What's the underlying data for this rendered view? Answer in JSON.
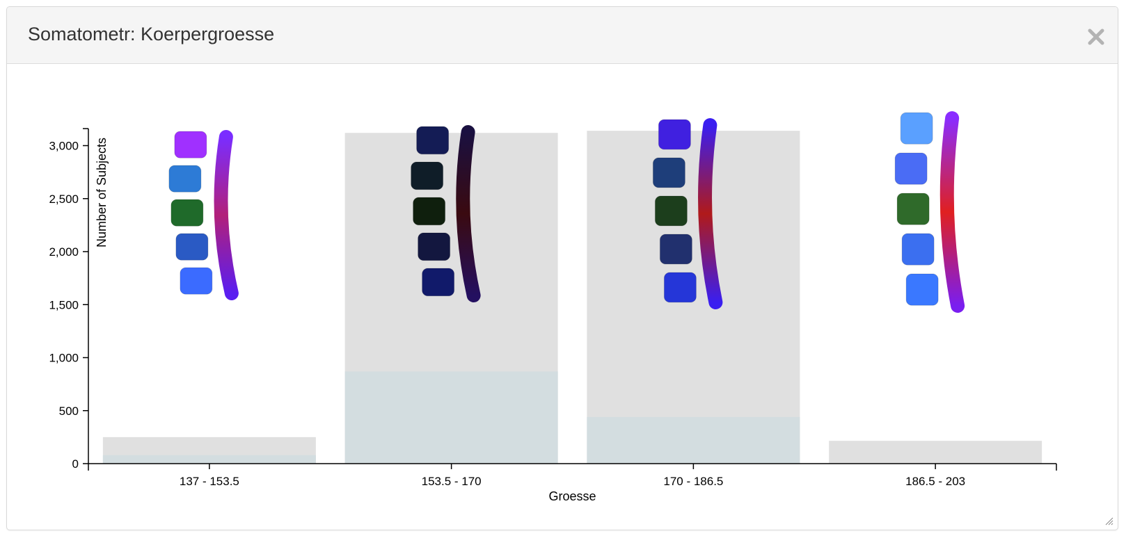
{
  "window": {
    "title": "Somatometr: Koerpergroesse",
    "close_icon": "close-icon",
    "resize_icon": "resize-grip-icon"
  },
  "colors": {
    "total_bar": "#e0e0e0",
    "subset_bar": "#d3dde0",
    "axis": "#000000"
  },
  "chart_data": {
    "type": "bar",
    "title": "",
    "xlabel": "Groesse",
    "ylabel": "Number of Subjects",
    "categories": [
      "137 - 153.5",
      "153.5 - 170",
      "170 - 186.5",
      "186.5 - 203"
    ],
    "series": [
      {
        "values": [
          250,
          3120,
          3140,
          215
        ]
      },
      {
        "values": [
          80,
          870,
          440,
          0
        ]
      }
    ],
    "ylim": [
      0,
      3100
    ],
    "yticks": [
      0,
      500,
      1000,
      1500,
      2000,
      2500,
      3000
    ],
    "ytick_labels": [
      "0",
      "500",
      "1,000",
      "1,500",
      "2,000",
      "2,500",
      "3,000"
    ],
    "bar_overlays": [
      "spine-model-icon",
      "spine-model-icon",
      "spine-model-icon",
      "spine-model-icon"
    ]
  }
}
